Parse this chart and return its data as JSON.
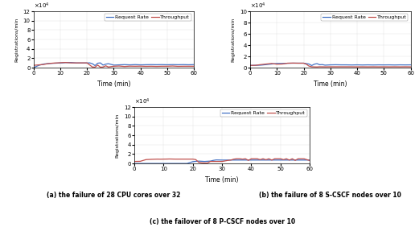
{
  "fig_width": 5.21,
  "fig_height": 2.82,
  "dpi": 100,
  "bg_color": "#ffffff",
  "blue_color": "#4472c4",
  "orange_color": "#c0504d",
  "legend_labels": [
    "Request Rate",
    "Throughput"
  ],
  "xlabel": "Time (min)",
  "ylabel": "Registrations/min",
  "xmax": 60,
  "caption_a": "(a) the failure of 28 CPU cores over 32",
  "caption_b": "(b) the failure of 8 S-CSCF nodes over 10",
  "caption_c": "(c) the failover of 8 P-CSCF nodes over 10",
  "subplot_a": {
    "ylim": [
      0,
      12000.0
    ],
    "yticks": [
      0,
      2,
      4,
      6,
      8,
      10,
      12
    ],
    "ytick_scale": 10000.0,
    "y_exp": "10^4",
    "rr_x": [
      0,
      2,
      4,
      6,
      8,
      10,
      12,
      14,
      16,
      18,
      20,
      21,
      22,
      23,
      24,
      25,
      26,
      27,
      28,
      29,
      30,
      32,
      34,
      36,
      38,
      40,
      42,
      44,
      46,
      48,
      50,
      52,
      54,
      56,
      58,
      60
    ],
    "rr_y": [
      0,
      0.5,
      0.8,
      0.9,
      0.95,
      1.0,
      1.08,
      1.1,
      1.0,
      1.0,
      1.0,
      1.02,
      0.85,
      0.45,
      0.95,
      1.02,
      0.55,
      0.75,
      0.85,
      0.7,
      0.55,
      0.6,
      0.65,
      0.6,
      0.65,
      0.6,
      0.63,
      0.65,
      0.63,
      0.65,
      0.62,
      0.65,
      0.63,
      0.65,
      0.62,
      0.65
    ],
    "tp_x": [
      0,
      2,
      4,
      5,
      6,
      7,
      8,
      9,
      10,
      11,
      12,
      14,
      16,
      18,
      20,
      21,
      22,
      23,
      24,
      25,
      26,
      27,
      28,
      30,
      32,
      34,
      36,
      38,
      40,
      42,
      44,
      46,
      48,
      50,
      52,
      54,
      56,
      58,
      60
    ],
    "tp_y": [
      0.5,
      0.6,
      0.7,
      0.82,
      0.9,
      0.96,
      1.0,
      1.02,
      1.05,
      1.08,
      1.1,
      1.02,
      1.02,
      1.02,
      1.02,
      0.58,
      0.14,
      0.12,
      0.55,
      0.1,
      0.15,
      0.4,
      0.15,
      0.3,
      0.35,
      0.25,
      0.32,
      0.3,
      0.32,
      0.28,
      0.3,
      0.27,
      0.3,
      0.3,
      0.35,
      0.28,
      0.3,
      0.3,
      0.3
    ]
  },
  "subplot_b": {
    "ylim": [
      0,
      10000.0
    ],
    "yticks": [
      0,
      2,
      4,
      6,
      8,
      10
    ],
    "ytick_scale": 10000.0,
    "y_exp": "10^4",
    "rr_x": [
      0,
      2,
      4,
      6,
      8,
      10,
      12,
      14,
      16,
      18,
      20,
      21,
      22,
      23,
      24,
      25,
      26,
      27,
      28,
      30,
      32,
      34,
      36,
      38,
      40,
      42,
      44,
      46,
      48,
      50,
      52,
      54,
      56,
      58,
      60
    ],
    "rr_y": [
      0.4,
      0.42,
      0.45,
      0.55,
      0.65,
      0.75,
      0.75,
      0.78,
      0.8,
      0.8,
      0.8,
      0.72,
      0.65,
      0.38,
      0.62,
      0.72,
      0.52,
      0.55,
      0.45,
      0.5,
      0.52,
      0.5,
      0.5,
      0.48,
      0.5,
      0.48,
      0.5,
      0.48,
      0.5,
      0.49,
      0.5,
      0.48,
      0.5,
      0.49,
      0.5
    ],
    "tp_x": [
      0,
      2,
      4,
      6,
      8,
      10,
      12,
      14,
      16,
      18,
      20,
      21,
      22,
      23,
      24,
      25,
      26,
      28,
      30,
      32,
      34,
      36,
      38,
      40,
      42,
      44,
      46,
      48,
      50,
      52,
      54,
      56,
      58,
      60
    ],
    "tp_y": [
      0.4,
      0.42,
      0.55,
      0.65,
      0.75,
      0.62,
      0.65,
      0.8,
      0.82,
      0.8,
      0.8,
      0.62,
      0.28,
      0.16,
      0.14,
      0.13,
      0.16,
      0.15,
      0.16,
      0.16,
      0.16,
      0.16,
      0.16,
      0.15,
      0.16,
      0.15,
      0.16,
      0.15,
      0.16,
      0.15,
      0.16,
      0.15,
      0.16,
      0.15
    ]
  },
  "subplot_c": {
    "ylim": [
      0,
      12000.0
    ],
    "yticks": [
      0,
      2,
      4,
      6,
      8,
      10,
      12
    ],
    "ytick_scale": 10000.0,
    "y_exp": "10^4",
    "rr_x": [
      0,
      2,
      4,
      6,
      8,
      10,
      12,
      14,
      16,
      18,
      20,
      22,
      24,
      26,
      27,
      28,
      30,
      32,
      34,
      36,
      38,
      40,
      42,
      44,
      46,
      48,
      50,
      52,
      54,
      56,
      58,
      60
    ],
    "rr_y": [
      0.0,
      0.0,
      0.0,
      0.0,
      0.0,
      0.0,
      0.0,
      0.0,
      0.0,
      0.0,
      0.38,
      0.5,
      0.42,
      0.5,
      0.65,
      0.75,
      0.72,
      0.72,
      0.72,
      0.72,
      0.72,
      0.72,
      0.72,
      0.72,
      0.72,
      0.72,
      0.72,
      0.72,
      0.72,
      0.72,
      0.72,
      0.72
    ],
    "tp_x": [
      0,
      2,
      4,
      6,
      8,
      9,
      10,
      11,
      12,
      14,
      16,
      18,
      20,
      21,
      22,
      23,
      24,
      25,
      26,
      28,
      30,
      32,
      33,
      34,
      35,
      36,
      37,
      38,
      39,
      40,
      42,
      43,
      44,
      45,
      46,
      47,
      48,
      50,
      51,
      52,
      53,
      54,
      55,
      56,
      58,
      60
    ],
    "tp_y": [
      0.42,
      0.45,
      0.82,
      0.88,
      0.92,
      0.9,
      0.92,
      0.93,
      0.95,
      0.92,
      0.92,
      0.92,
      0.92,
      0.82,
      0.25,
      0.14,
      0.1,
      0.1,
      0.42,
      0.42,
      0.42,
      0.65,
      0.72,
      0.92,
      1.0,
      1.0,
      0.92,
      1.0,
      0.65,
      1.0,
      1.0,
      0.82,
      1.0,
      0.8,
      1.0,
      0.72,
      1.0,
      1.0,
      0.82,
      1.0,
      0.72,
      1.0,
      0.65,
      1.0,
      1.0,
      0.62
    ]
  }
}
